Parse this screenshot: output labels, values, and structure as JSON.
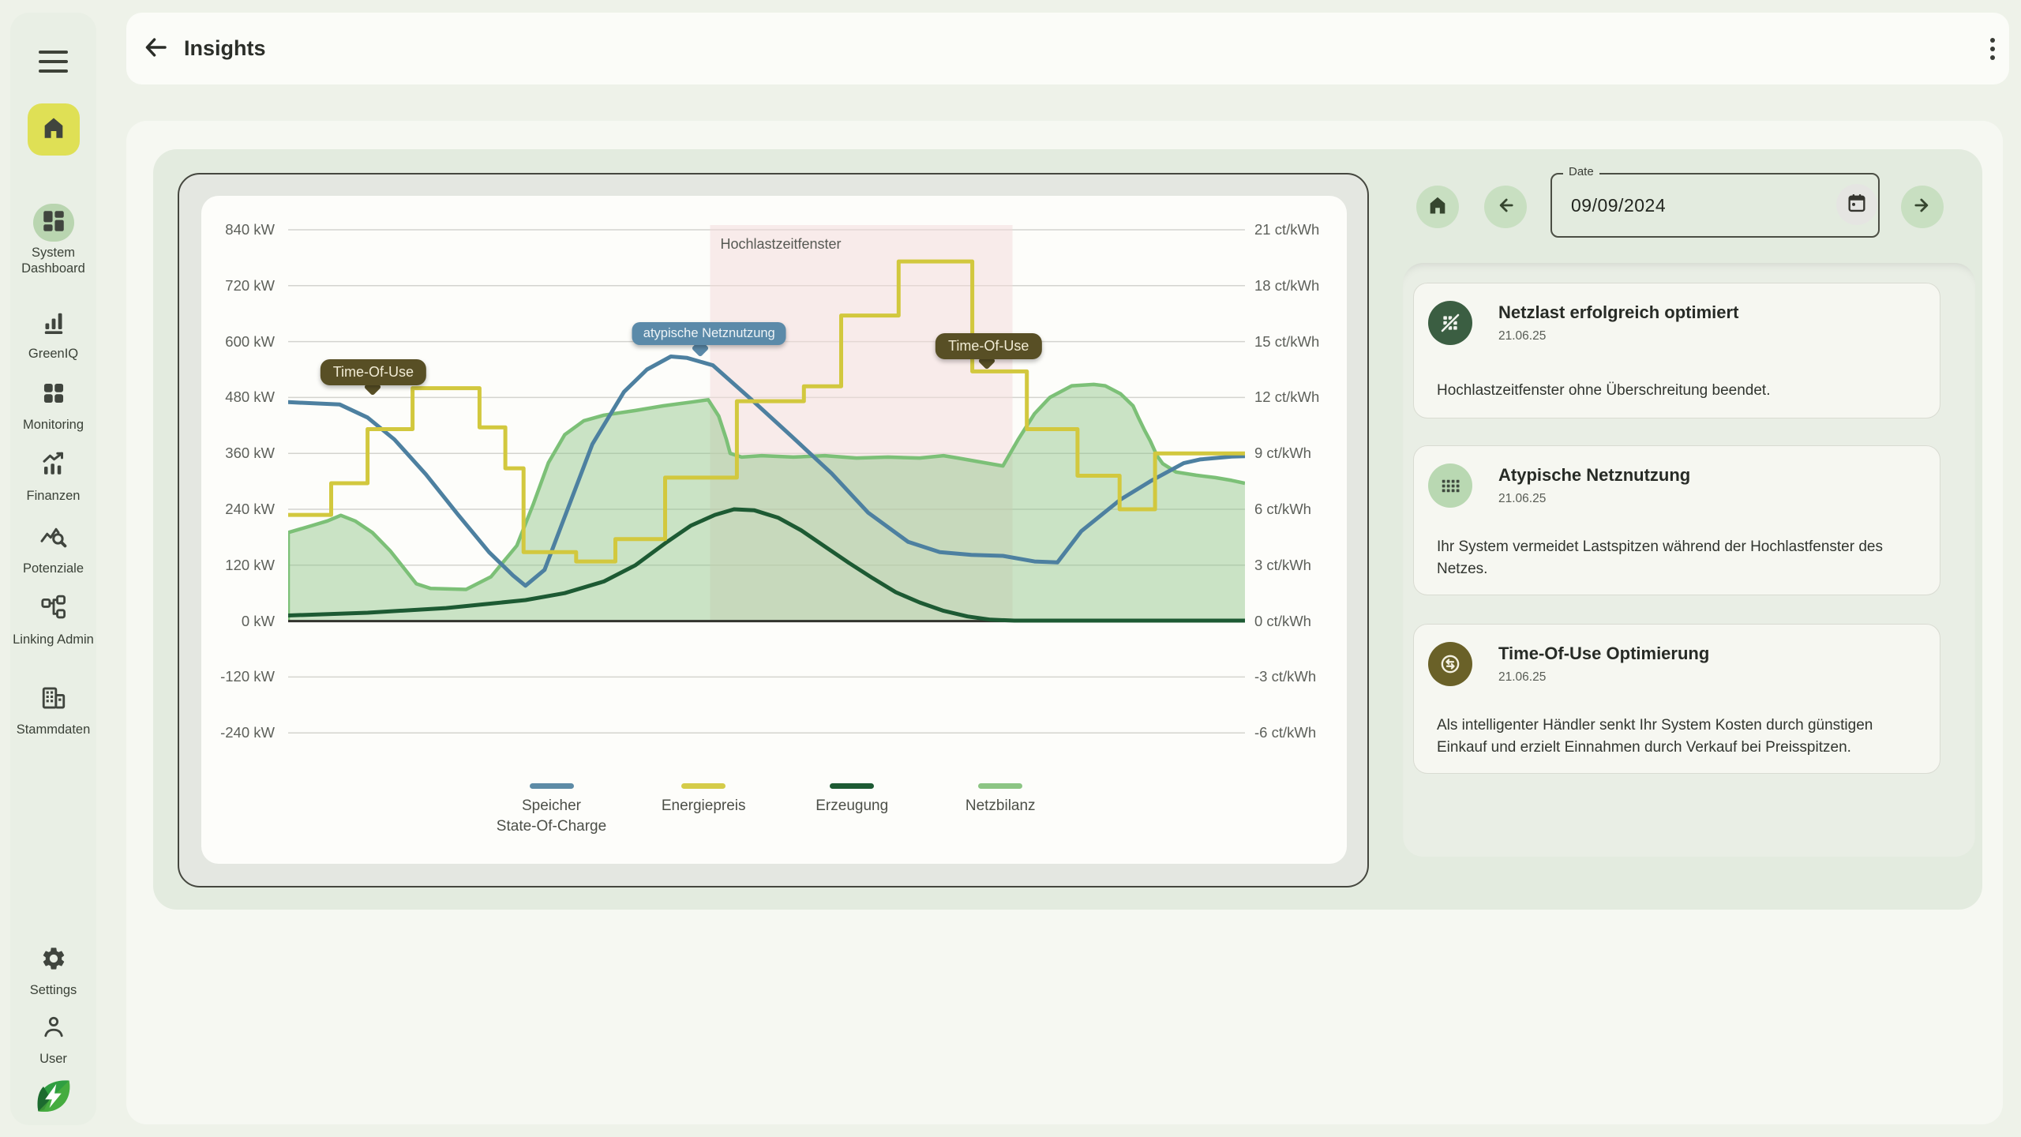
{
  "header": {
    "title": "Insights",
    "back_icon": "arrow-left",
    "menu_icon": "three-dot-menu"
  },
  "sidebar": {
    "items": [
      {
        "label": "System Dashboard",
        "icon": "dashboard-icon",
        "active": true
      },
      {
        "label": "GreenIQ",
        "icon": "bar-chart-icon",
        "active": false
      },
      {
        "label": "Monitoring",
        "icon": "grid-icon",
        "active": false
      },
      {
        "label": "Finanzen",
        "icon": "finance-chart-icon",
        "active": false
      },
      {
        "label": "Potenziale",
        "icon": "query-stats-icon",
        "active": false
      },
      {
        "label": "Linking Admin",
        "icon": "schema-icon",
        "active": false
      },
      {
        "label": "Stammdaten",
        "icon": "building-icon",
        "active": false
      }
    ],
    "settings": {
      "label": "Settings",
      "icon": "gear-icon"
    },
    "user": {
      "label": "User",
      "icon": "person-icon"
    },
    "home": {
      "icon": "home-icon",
      "active": true
    },
    "logo": "greeniq-leaf-bolt-logo"
  },
  "date_nav": {
    "label": "Date",
    "value": "09/09/2024",
    "home_icon": "home-icon",
    "prev_icon": "arrow-left-icon",
    "next_icon": "arrow-right-icon",
    "calendar_icon": "calendar-icon"
  },
  "notifications": [
    {
      "icon": "grid-off-icon",
      "icon_color": "#3b5e42",
      "title": "Netzlast erfolgreich optimiert",
      "date": "21.06.25",
      "body": "Hochlastzeitfenster ohne Überschreitung beendet."
    },
    {
      "icon": "grid-dots-icon",
      "icon_color": "#b9d8b2",
      "title": "Atypische Netznutzung",
      "date": "21.06.25",
      "body": "Ihr System vermeidet Lastspitzen während der Hochlastfenster des Netzes."
    },
    {
      "icon": "sync-circle-icon",
      "icon_color": "#6a6128",
      "title": "Time-Of-Use Optimierung",
      "date": "21.06.25",
      "body": "Als intelligenter Händler senkt Ihr System Kosten durch günstigen Einkauf und erzielt Einnahmen durch Verkauf bei Preisspitzen."
    }
  ],
  "colors": {
    "accent_yellow": "#dfe055",
    "active_pill": "#b9d5b0",
    "card_green": "#e3ebdf",
    "speicher_blue": "#4d80a0",
    "energiepreis_yellow": "#d2c83e",
    "erzeugung_green": "#1d5a33",
    "netzbilanz_green": "#7cc077",
    "peak_window_pink": "#f3d9d9",
    "badge_olive": "#584f25",
    "badge_blue": "#5b8aa9"
  },
  "chart_data": {
    "type": "line",
    "title": "",
    "xlabel": "",
    "grid": true,
    "legend_position": "bottom",
    "yaxis_left": {
      "unit": "kW",
      "values": [
        840,
        720,
        600,
        480,
        360,
        240,
        120,
        0,
        -120,
        -240
      ],
      "labels": [
        "840 kW",
        "720 kW",
        "600 kW",
        "480 kW",
        "360 kW",
        "240 kW",
        "120 kW",
        "0 kW",
        "-120 kW",
        "-240 kW"
      ]
    },
    "yaxis_right": {
      "unit": "ct/kWh",
      "values": [
        21,
        18,
        15,
        12,
        9,
        6,
        3,
        0,
        -3,
        -6
      ],
      "labels": [
        "21 ct/kWh",
        "18 ct/kWh",
        "15 ct/kWh",
        "12 ct/kWh",
        "9 ct/kWh",
        "6 ct/kWh",
        "3 ct/kWh",
        "0 ct/kWh",
        "-3 ct/kWh",
        "-6 ct/kWh"
      ]
    },
    "region": {
      "label": "Hochlastzeitfenster",
      "x1": 0.441,
      "x2": 0.757,
      "color": "#f3d9d9"
    },
    "badges": [
      {
        "text": "Time-Of-Use",
        "style": "olive",
        "x": 0.089,
        "y": 170,
        "tail_x": 0.088
      },
      {
        "text": "atypische Netznutzung",
        "style": "blue",
        "x": 0.44,
        "y": 123,
        "tail_x": 0.431
      },
      {
        "text": "Time-Of-Use",
        "style": "olive",
        "x": 0.732,
        "y": 137,
        "tail_x": 0.73
      }
    ],
    "series": [
      {
        "name": "Speicher State-Of-Charge",
        "type": "line",
        "axis": "left",
        "unit": "kW",
        "color": "#4d80a0",
        "points": [
          [
            0,
            470
          ],
          [
            0.054,
            465
          ],
          [
            0.083,
            437
          ],
          [
            0.111,
            390
          ],
          [
            0.144,
            315
          ],
          [
            0.177,
            230
          ],
          [
            0.21,
            148
          ],
          [
            0.235,
            98
          ],
          [
            0.248,
            76
          ],
          [
            0.268,
            110
          ],
          [
            0.293,
            245
          ],
          [
            0.318,
            380
          ],
          [
            0.351,
            492
          ],
          [
            0.375,
            540
          ],
          [
            0.4,
            568
          ],
          [
            0.417,
            565
          ],
          [
            0.444,
            549
          ],
          [
            0.485,
            474
          ],
          [
            0.526,
            397
          ],
          [
            0.568,
            317
          ],
          [
            0.606,
            233
          ],
          [
            0.648,
            170
          ],
          [
            0.681,
            148
          ],
          [
            0.714,
            142
          ],
          [
            0.747,
            140
          ],
          [
            0.78,
            128
          ],
          [
            0.804,
            126
          ],
          [
            0.829,
            193
          ],
          [
            0.87,
            261
          ],
          [
            0.901,
            300
          ],
          [
            0.936,
            339
          ],
          [
            0.953,
            347
          ],
          [
            0.986,
            353
          ],
          [
            1,
            354
          ]
        ]
      },
      {
        "name": "Energiepreis",
        "type": "step",
        "axis": "right",
        "unit": "ct/kWh",
        "color": "#d2c83e",
        "segments": [
          [
            0,
            0.045,
            5.7
          ],
          [
            0.045,
            0.083,
            7.4
          ],
          [
            0.083,
            0.13,
            10.3
          ],
          [
            0.13,
            0.2,
            12.5
          ],
          [
            0.2,
            0.227,
            10.4
          ],
          [
            0.227,
            0.246,
            8.2
          ],
          [
            0.246,
            0.301,
            3.7
          ],
          [
            0.301,
            0.342,
            3.2
          ],
          [
            0.342,
            0.394,
            4.4
          ],
          [
            0.394,
            0.469,
            7.7
          ],
          [
            0.469,
            0.539,
            11.8
          ],
          [
            0.539,
            0.578,
            12.6
          ],
          [
            0.578,
            0.638,
            16.4
          ],
          [
            0.638,
            0.715,
            19.3
          ],
          [
            0.715,
            0.772,
            13.4
          ],
          [
            0.772,
            0.825,
            10.3
          ],
          [
            0.825,
            0.869,
            7.8
          ],
          [
            0.869,
            0.906,
            6.0
          ],
          [
            0.906,
            1,
            9.0
          ]
        ]
      },
      {
        "name": "Erzeugung",
        "type": "line",
        "axis": "left",
        "unit": "kW",
        "color": "#1d5a33",
        "points": [
          [
            0,
            12
          ],
          [
            0.083,
            18
          ],
          [
            0.165,
            28
          ],
          [
            0.248,
            45
          ],
          [
            0.289,
            60
          ],
          [
            0.33,
            85
          ],
          [
            0.363,
            120
          ],
          [
            0.396,
            170
          ],
          [
            0.421,
            205
          ],
          [
            0.446,
            228
          ],
          [
            0.466,
            240
          ],
          [
            0.487,
            238
          ],
          [
            0.512,
            222
          ],
          [
            0.536,
            195
          ],
          [
            0.561,
            160
          ],
          [
            0.586,
            125
          ],
          [
            0.611,
            92
          ],
          [
            0.635,
            62
          ],
          [
            0.66,
            40
          ],
          [
            0.685,
            22
          ],
          [
            0.71,
            10
          ],
          [
            0.734,
            3
          ],
          [
            0.759,
            1
          ],
          [
            1,
            1
          ]
        ]
      },
      {
        "name": "Netzbilanz",
        "type": "area",
        "axis": "left",
        "unit": "kW",
        "color": "#7cc077",
        "fill": "#8cc485",
        "points": [
          [
            0,
            190
          ],
          [
            0.025,
            205
          ],
          [
            0.041,
            215
          ],
          [
            0.055,
            227
          ],
          [
            0.07,
            215
          ],
          [
            0.088,
            190
          ],
          [
            0.107,
            150
          ],
          [
            0.134,
            80
          ],
          [
            0.149,
            70
          ],
          [
            0.186,
            68
          ],
          [
            0.212,
            95
          ],
          [
            0.239,
            162
          ],
          [
            0.256,
            250
          ],
          [
            0.272,
            340
          ],
          [
            0.289,
            400
          ],
          [
            0.309,
            430
          ],
          [
            0.33,
            442
          ],
          [
            0.363,
            452
          ],
          [
            0.392,
            462
          ],
          [
            0.421,
            470
          ],
          [
            0.439,
            475
          ],
          [
            0.45,
            440
          ],
          [
            0.458,
            390
          ],
          [
            0.462,
            360
          ],
          [
            0.474,
            352
          ],
          [
            0.495,
            355
          ],
          [
            0.528,
            352
          ],
          [
            0.561,
            355
          ],
          [
            0.594,
            350
          ],
          [
            0.627,
            352
          ],
          [
            0.66,
            350
          ],
          [
            0.685,
            355
          ],
          [
            0.7,
            350
          ],
          [
            0.747,
            333
          ],
          [
            0.763,
            390
          ],
          [
            0.78,
            445
          ],
          [
            0.796,
            480
          ],
          [
            0.819,
            505
          ],
          [
            0.842,
            508
          ],
          [
            0.854,
            505
          ],
          [
            0.87,
            488
          ],
          [
            0.883,
            462
          ],
          [
            0.889,
            435
          ],
          [
            0.895,
            410
          ],
          [
            0.901,
            387
          ],
          [
            0.908,
            355
          ],
          [
            0.914,
            338
          ],
          [
            0.928,
            320
          ],
          [
            0.949,
            313
          ],
          [
            0.969,
            308
          ],
          [
            0.986,
            302
          ],
          [
            1,
            296
          ]
        ]
      }
    ],
    "legend": [
      {
        "label": "Speicher\nState-Of-Charge",
        "color": "#5d8ba6"
      },
      {
        "label": "Energiepreis",
        "color": "#d5cc49"
      },
      {
        "label": "Erzeugung",
        "color": "#1d5a33"
      },
      {
        "label": "Netzbilanz",
        "color": "#8cc584"
      }
    ]
  }
}
